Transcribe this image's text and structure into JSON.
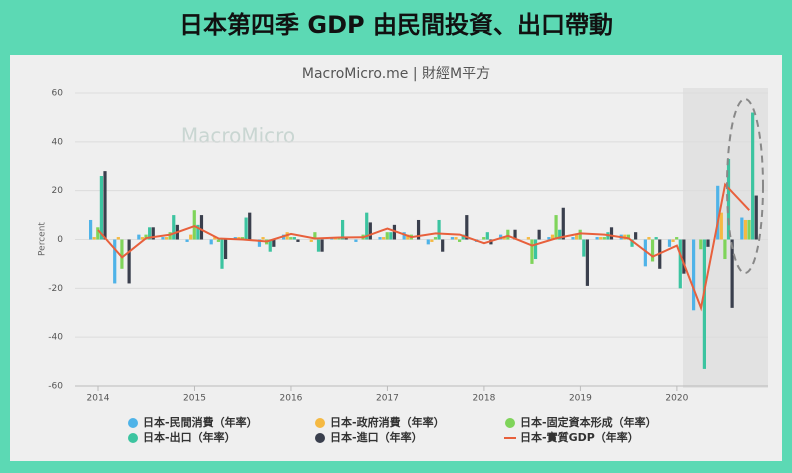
{
  "chart_data": {
    "type": "bar-line",
    "title": "日本第四季 GDP 由民間投資、出口帶動",
    "subtitle": "MacroMicro.me | 財經M平方",
    "watermark": "MacroMicro",
    "y_label": "Percent",
    "categories": [
      "2014",
      null,
      null,
      null,
      "2015",
      null,
      null,
      null,
      "2016",
      null,
      null,
      null,
      "2017",
      null,
      null,
      null,
      "2018",
      null,
      null,
      null,
      "2019",
      null,
      null,
      null,
      "2020",
      null,
      null,
      null
    ],
    "ylim": [
      -60,
      60
    ],
    "yticks": [
      -60,
      -40,
      -20,
      0,
      20,
      40,
      60
    ],
    "grid": true,
    "series": [
      {
        "name": "日本-民間消費（年率）",
        "type": "bar",
        "color": "#4fb3e8",
        "values": [
          8,
          -18,
          2,
          1,
          -1,
          -2,
          1,
          -3,
          2,
          0,
          1,
          -1,
          1,
          3,
          -2,
          1,
          -1,
          2,
          0,
          1,
          1,
          1,
          2,
          -11,
          -3,
          -29,
          22,
          9
        ]
      },
      {
        "name": "日本-政府消費（年率）",
        "type": "bar",
        "color": "#f5b942",
        "values": [
          1,
          1,
          1,
          1,
          2,
          1,
          1,
          1,
          3,
          -1,
          1,
          0,
          1,
          2,
          -1,
          1,
          0,
          1,
          1,
          2,
          2,
          1,
          2,
          1,
          -1,
          0,
          11,
          8
        ]
      },
      {
        "name": "日本-固定資本形成（年率）",
        "type": "bar",
        "color": "#7fd45a",
        "values": [
          5,
          -12,
          2,
          3,
          12,
          -1,
          1,
          -2,
          1,
          3,
          1,
          2,
          3,
          2,
          1,
          -1,
          1,
          4,
          -10,
          10,
          4,
          1,
          2,
          -9,
          1,
          -4,
          -8,
          8
        ]
      },
      {
        "name": "日本-出口（年率）",
        "type": "bar",
        "color": "#3cc4a0",
        "values": [
          26,
          0,
          5,
          10,
          6,
          -12,
          9,
          -5,
          1,
          -5,
          8,
          11,
          3,
          0,
          8,
          2,
          3,
          0,
          -8,
          4,
          -7,
          3,
          -3,
          1,
          -20,
          -53,
          33,
          52
        ]
      },
      {
        "name": "日本-進口（年率）",
        "type": "bar",
        "color": "#3a3f4d",
        "values": [
          28,
          -18,
          5,
          6,
          10,
          -8,
          11,
          -3,
          -1,
          -5,
          1,
          7,
          6,
          8,
          -5,
          10,
          -2,
          4,
          4,
          13,
          -19,
          5,
          3,
          -12,
          -14,
          -3,
          -28,
          18
        ]
      },
      {
        "name": "日本-實質GDP（年率）",
        "type": "line",
        "color": "#e8603c",
        "values": [
          3.9,
          -7.3,
          0.6,
          2.0,
          5.5,
          0.4,
          0.0,
          -0.8,
          2.3,
          0.4,
          0.8,
          0.9,
          4.5,
          1.0,
          2.5,
          2.0,
          -1.5,
          1.5,
          -2.5,
          0.5,
          2.5,
          2.0,
          0.5,
          -7.0,
          -2.5,
          -28,
          22.5,
          12
        ]
      }
    ]
  }
}
